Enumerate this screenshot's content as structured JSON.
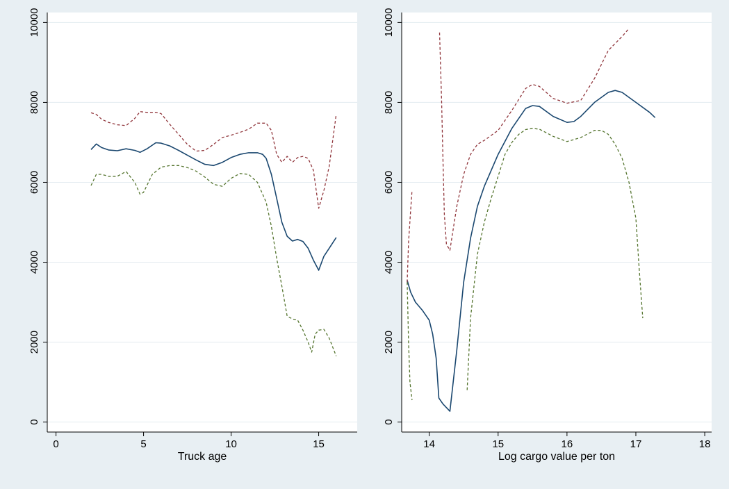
{
  "chart_data": [
    {
      "type": "line",
      "xlabel": "Truck age",
      "ylabel": "",
      "xlim": [
        -0.5,
        17.2
      ],
      "ylim": [
        -250,
        10250
      ],
      "xticks": [
        0,
        5,
        10,
        15
      ],
      "yticks": [
        0,
        2000,
        4000,
        6000,
        8000,
        10000
      ],
      "grid": true,
      "series": [
        {
          "style": "solid",
          "color": "#1a476f",
          "x": [
            2,
            2.3,
            2.6,
            3.0,
            3.5,
            4.0,
            4.5,
            4.8,
            5.2,
            5.7,
            6.0,
            6.5,
            7.0,
            7.5,
            8.0,
            8.5,
            9.0,
            9.5,
            10.0,
            10.5,
            11.0,
            11.5,
            11.8,
            12.0,
            12.3,
            12.6,
            12.9,
            13.2,
            13.5,
            13.8,
            14.1,
            14.4,
            14.7,
            15.0,
            15.3,
            15.6,
            16.0
          ],
          "y": [
            6820,
            6960,
            6870,
            6810,
            6790,
            6840,
            6800,
            6750,
            6840,
            6990,
            6980,
            6910,
            6800,
            6680,
            6560,
            6450,
            6420,
            6500,
            6620,
            6700,
            6740,
            6740,
            6700,
            6600,
            6200,
            5600,
            5000,
            4650,
            4530,
            4570,
            4520,
            4350,
            4050,
            3800,
            4150,
            4350,
            4620
          ]
        },
        {
          "style": "dashed",
          "color": "#90353b",
          "x": [
            2,
            2.3,
            2.6,
            3.0,
            3.5,
            4.0,
            4.5,
            4.8,
            5.2,
            5.7,
            6.0,
            6.5,
            7.0,
            7.5,
            8.0,
            8.5,
            9.0,
            9.5,
            10.0,
            10.5,
            11.0,
            11.5,
            12.0,
            12.3,
            12.6,
            12.9,
            13.2,
            13.5,
            13.8,
            14.1,
            14.4,
            14.7,
            15.0,
            15.3,
            15.6,
            16.0
          ],
          "y": [
            7740,
            7700,
            7580,
            7500,
            7440,
            7420,
            7600,
            7770,
            7750,
            7750,
            7720,
            7450,
            7200,
            6950,
            6780,
            6800,
            6950,
            7120,
            7180,
            7250,
            7330,
            7480,
            7480,
            7300,
            6700,
            6500,
            6650,
            6500,
            6620,
            6650,
            6600,
            6300,
            5350,
            5800,
            6400,
            7700
          ]
        },
        {
          "style": "dashed",
          "color": "#55752f",
          "x": [
            2,
            2.3,
            2.6,
            3.0,
            3.5,
            4.0,
            4.5,
            4.8,
            5.0,
            5.5,
            6.0,
            6.5,
            7.0,
            7.5,
            8.0,
            8.5,
            9.0,
            9.5,
            10.0,
            10.5,
            11.0,
            11.5,
            12.0,
            12.3,
            12.6,
            12.9,
            13.2,
            13.5,
            13.8,
            14.1,
            14.4,
            14.6,
            14.8,
            15.0,
            15.3,
            15.6,
            16.0
          ],
          "y": [
            5920,
            6200,
            6200,
            6150,
            6150,
            6270,
            6000,
            5700,
            5750,
            6200,
            6380,
            6420,
            6420,
            6370,
            6280,
            6130,
            5950,
            5900,
            6100,
            6220,
            6200,
            6000,
            5500,
            4900,
            4100,
            3400,
            2650,
            2580,
            2550,
            2300,
            2000,
            1750,
            2200,
            2300,
            2320,
            2100,
            1650
          ]
        }
      ]
    },
    {
      "type": "line",
      "xlabel": "Log cargo value per ton",
      "ylabel": "",
      "xlim": [
        13.6,
        18.1
      ],
      "ylim": [
        -250,
        10250
      ],
      "xticks": [
        14,
        15,
        16,
        17,
        18
      ],
      "yticks": [
        0,
        2000,
        4000,
        6000,
        8000,
        10000
      ],
      "grid": true,
      "series": [
        {
          "style": "solid",
          "color": "#1a476f",
          "x": [
            13.68,
            13.73,
            13.8,
            13.9,
            14.0,
            14.05,
            14.1,
            14.14,
            14.2,
            14.3,
            14.4,
            14.5,
            14.6,
            14.7,
            14.8,
            15.0,
            15.2,
            15.4,
            15.5,
            15.6,
            15.8,
            16.0,
            16.1,
            16.2,
            16.4,
            16.6,
            16.7,
            16.8,
            17.0,
            17.2,
            17.28
          ],
          "y": [
            3550,
            3250,
            3000,
            2800,
            2550,
            2200,
            1600,
            600,
            450,
            270,
            1800,
            3500,
            4600,
            5400,
            5900,
            6700,
            7350,
            7850,
            7920,
            7900,
            7650,
            7500,
            7520,
            7650,
            8000,
            8250,
            8300,
            8250,
            8000,
            7750,
            7620
          ]
        },
        {
          "style": "dashed",
          "color": "#90353b",
          "x": [
            13.68,
            13.7,
            13.73,
            13.75
          ],
          "y": [
            3500,
            4500,
            5300,
            5800
          ]
        },
        {
          "style": "dashed",
          "color": "#90353b",
          "x": [
            14.15,
            14.18,
            14.2,
            14.22,
            14.25,
            14.3,
            14.4,
            14.5,
            14.6,
            14.7,
            14.8,
            15.0,
            15.2,
            15.4,
            15.5,
            15.6,
            15.8,
            16.0,
            16.2,
            16.4,
            16.6,
            16.8,
            16.9
          ],
          "y": [
            9750,
            8000,
            6500,
            5200,
            4450,
            4300,
            5400,
            6200,
            6700,
            6950,
            7050,
            7300,
            7800,
            8350,
            8450,
            8400,
            8100,
            7980,
            8050,
            8600,
            9300,
            9650,
            9850
          ]
        },
        {
          "style": "dashed",
          "color": "#55752f",
          "x": [
            13.68,
            13.7,
            13.72,
            13.75
          ],
          "y": [
            3500,
            2000,
            1000,
            550
          ]
        },
        {
          "style": "dashed",
          "color": "#55752f",
          "x": [
            14.55,
            14.6,
            14.7,
            14.8,
            14.9,
            15.0,
            15.1,
            15.2,
            15.3,
            15.4,
            15.5,
            15.6,
            15.8,
            16.0,
            16.2,
            16.4,
            16.5,
            16.6,
            16.7,
            16.8,
            16.9,
            17.0,
            17.05,
            17.1
          ],
          "y": [
            800,
            2600,
            4200,
            5000,
            5600,
            6150,
            6700,
            7000,
            7200,
            7320,
            7350,
            7330,
            7150,
            7020,
            7120,
            7300,
            7300,
            7200,
            6950,
            6600,
            6000,
            5100,
            3800,
            2600
          ]
        }
      ]
    }
  ]
}
